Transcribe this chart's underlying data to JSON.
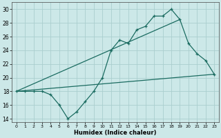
{
  "xlabel": "Humidex (Indice chaleur)",
  "background_color": "#cce8e8",
  "line_color": "#1a6b60",
  "grid_color": "#aacece",
  "xlim": [
    -0.5,
    23.5
  ],
  "ylim": [
    13.5,
    31.0
  ],
  "xticks": [
    0,
    1,
    2,
    3,
    4,
    5,
    6,
    7,
    8,
    9,
    10,
    11,
    12,
    13,
    14,
    15,
    16,
    17,
    18,
    19,
    20,
    21,
    22,
    23
  ],
  "yticks": [
    14,
    16,
    18,
    20,
    22,
    24,
    26,
    28,
    30
  ],
  "line1_x": [
    0,
    1,
    2,
    3,
    4,
    5,
    6,
    7,
    8,
    9,
    10,
    11,
    12,
    13,
    14,
    15,
    16,
    17,
    18,
    19,
    20,
    21,
    22,
    23
  ],
  "line1_y": [
    18,
    18,
    18,
    18,
    17.5,
    16,
    14,
    15,
    16.5,
    18,
    20,
    24,
    25.5,
    25,
    27,
    27.5,
    29,
    29,
    30,
    28.5,
    25,
    23.5,
    22.5,
    20.5
  ],
  "line2_x": [
    0,
    23
  ],
  "line2_y": [
    18,
    20.5
  ],
  "line3_x": [
    0,
    19
  ],
  "line3_y": [
    18,
    28.5
  ]
}
